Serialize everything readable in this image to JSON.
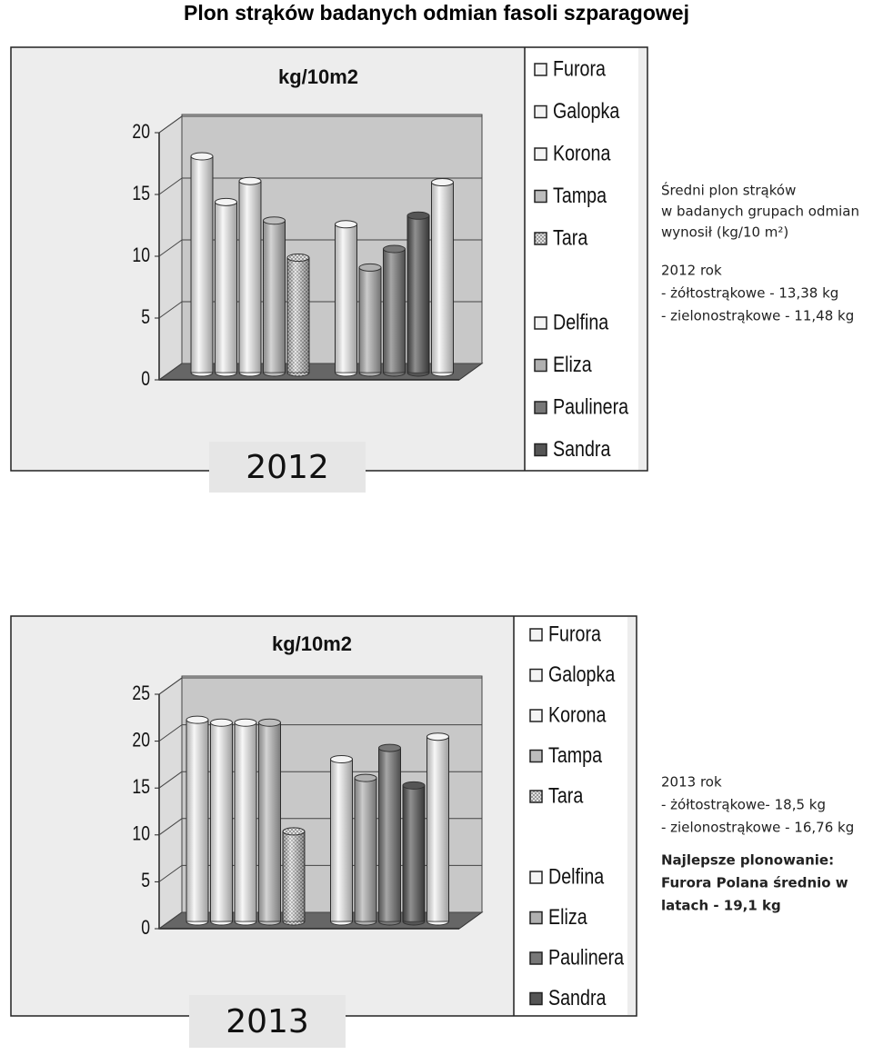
{
  "title": "Plon strąków badanych odmian fasoli szparagowej",
  "chart_data": [
    {
      "type": "bar",
      "unit_label": "kg/10m2",
      "year_label": "2012",
      "ylim": [
        0,
        20
      ],
      "yticks": [
        0,
        5,
        10,
        15,
        20
      ],
      "series": [
        {
          "name": "Furora",
          "color": "#f4f4f4",
          "values": [
            17.5
          ]
        },
        {
          "name": "Galopka",
          "color": "#f4f4f4",
          "values": [
            13.8
          ]
        },
        {
          "name": "Korona",
          "color": "#f4f4f4",
          "values": [
            15.5
          ]
        },
        {
          "name": "Tampa",
          "color": "#bdbdbd",
          "values": [
            12.3
          ]
        },
        {
          "name": "Tara",
          "color": "#cfcfcf",
          "values": [
            9.3
          ]
        },
        {
          "name": "Delfina",
          "color": "#f4f4f4",
          "values": [
            12
          ]
        },
        {
          "name": "Eliza",
          "color": "#b0b0b0",
          "values": [
            8.5
          ]
        },
        {
          "name": "Paulinera",
          "color": "#777777",
          "values": [
            10
          ]
        },
        {
          "name": "Sandra",
          "color": "#555555",
          "values": [
            12.7
          ]
        },
        {
          "name": null,
          "color": "#f4f4f4",
          "values": [
            15.4
          ]
        }
      ]
    },
    {
      "type": "bar",
      "unit_label": "kg/10m2",
      "year_label": "2013",
      "ylim": [
        0,
        25
      ],
      "yticks": [
        0,
        5,
        10,
        15,
        20,
        25
      ],
      "series": [
        {
          "name": "Furora",
          "color": "#f4f4f4",
          "values": [
            21.5
          ]
        },
        {
          "name": "Galopka",
          "color": "#f4f4f4",
          "values": [
            21.2
          ]
        },
        {
          "name": "Korona",
          "color": "#f4f4f4",
          "values": [
            21.2
          ]
        },
        {
          "name": "Tampa",
          "color": "#bdbdbd",
          "values": [
            21.2
          ]
        },
        {
          "name": "Tara",
          "color": "#cfcfcf",
          "values": [
            9.6
          ]
        },
        {
          "name": "Delfina",
          "color": "#f4f4f4",
          "values": [
            17.3
          ]
        },
        {
          "name": "Eliza",
          "color": "#b0b0b0",
          "values": [
            15.3
          ]
        },
        {
          "name": "Paulinera",
          "color": "#777777",
          "values": [
            18.5
          ]
        },
        {
          "name": "Sandra",
          "color": "#555555",
          "values": [
            14.5
          ]
        },
        {
          "name": null,
          "color": "#f4f4f4",
          "values": [
            19.7
          ]
        }
      ]
    }
  ],
  "notes": [
    {
      "lines": [
        "Średni plon strąków",
        "w badanych grupach odmian",
        "wynosił (kg/10 m²)",
        "2012 rok",
        "- żółtostrąkowe - 13,38 kg",
        "- zielonostrąkowe - 11,48 kg"
      ]
    },
    {
      "lines": [
        "2013 rok",
        "- żółtostrąkowe- 18,5 kg",
        "- zielonostrąkowe - 16,76 kg"
      ],
      "bold_lines": [
        "Najlepsze plonowanie:",
        "Furora Polana średnio w",
        "latach - 19,1 kg"
      ]
    }
  ]
}
